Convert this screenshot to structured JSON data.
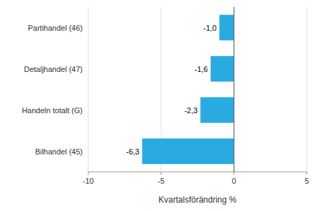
{
  "chart_data": {
    "type": "bar",
    "orientation": "horizontal",
    "categories": [
      "Bilhandel (45)",
      "Handeln totalt (G)",
      "Detaljhandel (47)",
      "Partihandel (46)"
    ],
    "values": [
      -6.3,
      -2.3,
      -1.6,
      -1.0
    ],
    "value_labels": [
      "-6,3",
      "-2,3",
      "-1,6",
      "-1,0"
    ],
    "data_labels": true,
    "color": "#29ABE2",
    "xlabel": "Kvartalsförändring %",
    "xlim": [
      -10,
      5
    ],
    "xticks": [
      -10,
      -5,
      0,
      5
    ],
    "grid": true
  }
}
